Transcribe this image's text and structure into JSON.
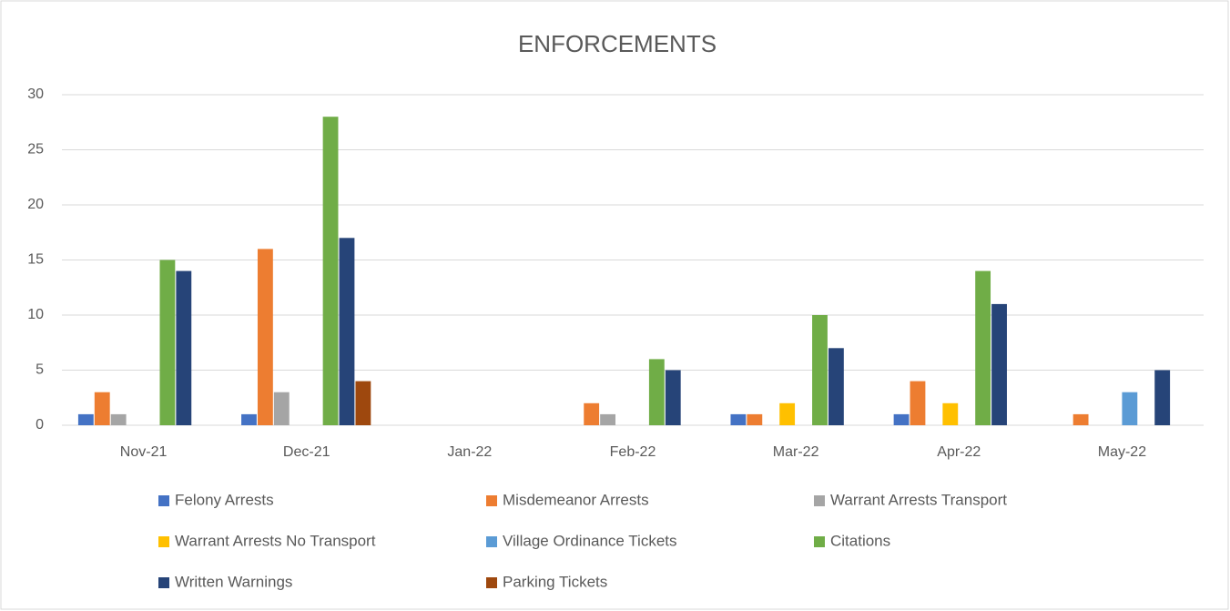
{
  "chart_data": {
    "type": "bar",
    "title": "ENFORCEMENTS",
    "categories": [
      "Nov-21",
      "Dec-21",
      "Jan-22",
      "Feb-22",
      "Mar-22",
      "Apr-22",
      "May-22"
    ],
    "series": [
      {
        "name": "Felony Arrests",
        "color": "#4472c4",
        "values": [
          1,
          1,
          0,
          0,
          1,
          1,
          0
        ]
      },
      {
        "name": "Misdemeanor Arrests",
        "color": "#ed7d31",
        "values": [
          3,
          16,
          0,
          2,
          1,
          4,
          1
        ]
      },
      {
        "name": "Warrant Arrests Transport",
        "color": "#a5a5a5",
        "values": [
          1,
          3,
          0,
          1,
          0,
          0,
          0
        ]
      },
      {
        "name": "Warrant Arrests No Transport",
        "color": "#ffc000",
        "values": [
          0,
          0,
          0,
          0,
          2,
          2,
          0
        ]
      },
      {
        "name": "Village Ordinance Tickets",
        "color": "#5b9bd5",
        "values": [
          0,
          0,
          0,
          0,
          0,
          0,
          3
        ]
      },
      {
        "name": "Citations",
        "color": "#70ad47",
        "values": [
          15,
          28,
          0,
          6,
          10,
          14,
          0
        ]
      },
      {
        "name": "Written Warnings",
        "color": "#264478",
        "values": [
          14,
          17,
          0,
          5,
          7,
          11,
          5
        ]
      },
      {
        "name": "Parking Tickets",
        "color": "#9e480e",
        "values": [
          0,
          4,
          0,
          0,
          0,
          0,
          0
        ]
      }
    ],
    "ylim": [
      0,
      30
    ],
    "yticks": [
      0,
      5,
      10,
      15,
      20,
      25,
      30
    ],
    "grid": true,
    "legend": "bottom"
  }
}
